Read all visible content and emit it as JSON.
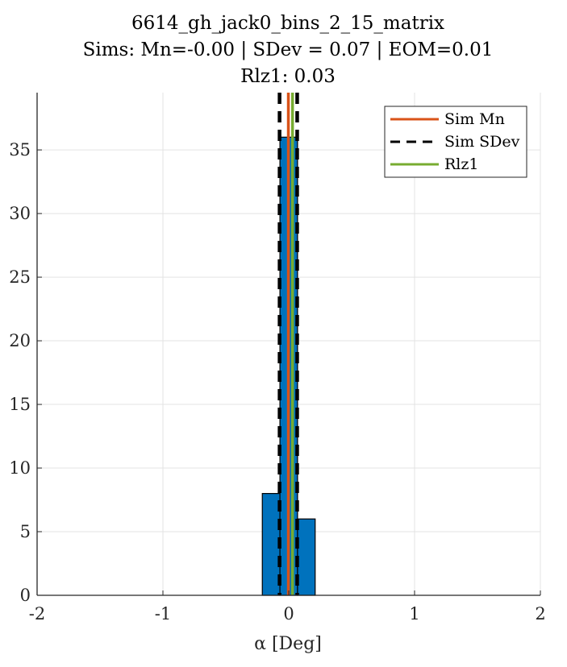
{
  "chart_data": {
    "type": "bar",
    "title_lines": [
      "6614_gh_jack0_bins_2_15_matrix",
      "Sims: Mn=-0.00 | SDev = 0.07 | EOM=0.01",
      "Rlz1: 0.03"
    ],
    "xlabel": "α [Deg]",
    "ylabel": "",
    "xlim": [
      -2,
      2
    ],
    "ylim": [
      0,
      39.5
    ],
    "xticks": [
      -2,
      -1,
      0,
      1,
      2
    ],
    "xtick_labels": [
      "-2",
      "-1",
      "0",
      "1",
      "2"
    ],
    "yticks": [
      0,
      5,
      10,
      15,
      20,
      25,
      30,
      35
    ],
    "ytick_labels": [
      "0",
      "5",
      "10",
      "15",
      "20",
      "25",
      "30",
      "35"
    ],
    "grid": true,
    "bins": [
      {
        "start": -0.21,
        "end": -0.07,
        "count": 8
      },
      {
        "start": -0.07,
        "end": 0.07,
        "count": 36
      },
      {
        "start": 0.07,
        "end": 0.21,
        "count": 6
      }
    ],
    "lines": [
      {
        "name": "Sim Mn",
        "x": [
          -0.003
        ],
        "style": "solid",
        "color": "#D95319"
      },
      {
        "name": "Sim SDev",
        "x": [
          -0.073,
          0.067
        ],
        "style": "dashed",
        "color": "#000000"
      },
      {
        "name": "Rlz1",
        "x": [
          0.03
        ],
        "style": "solid",
        "color": "#77AC30"
      }
    ],
    "legend_position": "top-right",
    "bar_color": "#0072BD"
  }
}
